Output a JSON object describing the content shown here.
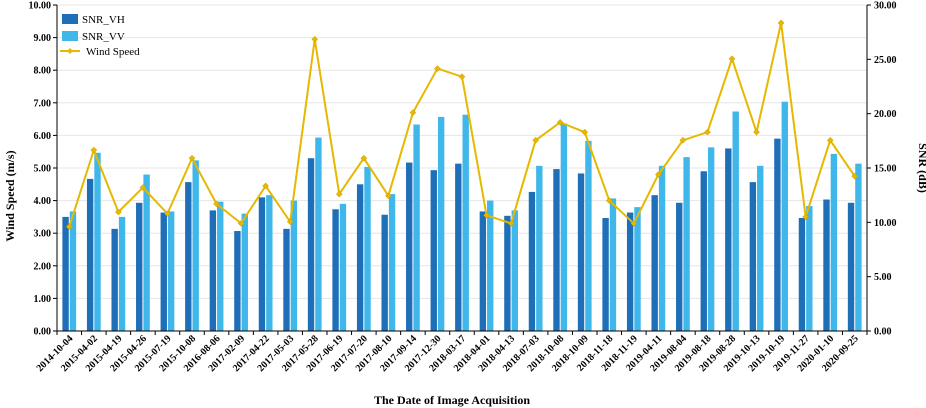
{
  "chart_data": {
    "type": "bar",
    "xlabel": "The Date of Image Acquisition",
    "ylabel_left": "Wind Speed (m/s)",
    "ylabel_right": "SNR (dB)",
    "ylim_left": [
      0,
      10
    ],
    "ylim_right": [
      0,
      30
    ],
    "yticks_left": [
      "0.00",
      "1.00",
      "2.00",
      "3.00",
      "4.00",
      "5.00",
      "6.00",
      "7.00",
      "8.00",
      "9.00",
      "10.00"
    ],
    "yticks_right": [
      "0.00",
      "5.00",
      "10.00",
      "15.00",
      "20.00",
      "25.00",
      "30.00"
    ],
    "grid": true,
    "legend_position": "top-left",
    "categories": [
      "2014-10-04",
      "2015-04-02",
      "2015-04-19",
      "2015-04-26",
      "2015-07-19",
      "2015-10-08",
      "2016-08-06",
      "2017-02-09",
      "2017-04-22",
      "2017-05-03",
      "2017-05-28",
      "2017-06-19",
      "2017-07-20",
      "2017-08-10",
      "2017-09-14",
      "2017-12-30",
      "2018-03-17",
      "2018-04-01",
      "2018-04-13",
      "2018-07-03",
      "2018-10-08",
      "2018-10-09",
      "2018-11-18",
      "2018-11-19",
      "2019-04-11",
      "2019-08-04",
      "2019-08-18",
      "2019-08-28",
      "2019-10-13",
      "2019-10-19",
      "2019-11-27",
      "2020-01-10",
      "2020-09-25"
    ],
    "series": [
      {
        "name": "SNR_VH",
        "axis": "right",
        "kind": "bar",
        "color": "#1e6fb8",
        "values": [
          10.5,
          14.0,
          9.4,
          11.8,
          10.9,
          13.7,
          11.1,
          9.2,
          12.3,
          9.4,
          15.9,
          11.2,
          13.5,
          10.7,
          15.5,
          14.8,
          15.4,
          11.0,
          10.6,
          12.8,
          14.9,
          14.5,
          10.4,
          10.9,
          12.5,
          11.8,
          14.7,
          16.8,
          13.7,
          17.7,
          10.4,
          12.1,
          11.8
        ]
      },
      {
        "name": "SNR_VV",
        "axis": "right",
        "kind": "bar",
        "color": "#3fb7ea",
        "values": [
          11.0,
          16.4,
          10.5,
          14.4,
          11.0,
          15.7,
          11.9,
          10.8,
          12.5,
          12.0,
          17.8,
          11.7,
          15.1,
          12.6,
          19.0,
          19.7,
          19.9,
          12.0,
          11.1,
          15.2,
          19.1,
          17.5,
          12.2,
          11.4,
          15.2,
          16.0,
          16.9,
          20.2,
          15.2,
          21.1,
          11.5,
          16.3,
          15.4
        ]
      },
      {
        "name": "Wind Speed",
        "axis": "left",
        "kind": "line",
        "color": "#e6b800",
        "values": [
          3.2,
          5.55,
          3.65,
          4.4,
          3.6,
          5.3,
          3.9,
          3.3,
          4.45,
          3.35,
          8.95,
          4.2,
          5.3,
          4.15,
          6.7,
          8.05,
          7.8,
          3.55,
          3.3,
          5.85,
          6.4,
          6.1,
          4.0,
          3.3,
          4.8,
          5.85,
          6.1,
          8.35,
          6.1,
          9.45,
          3.5,
          5.85,
          4.75
        ]
      }
    ]
  }
}
